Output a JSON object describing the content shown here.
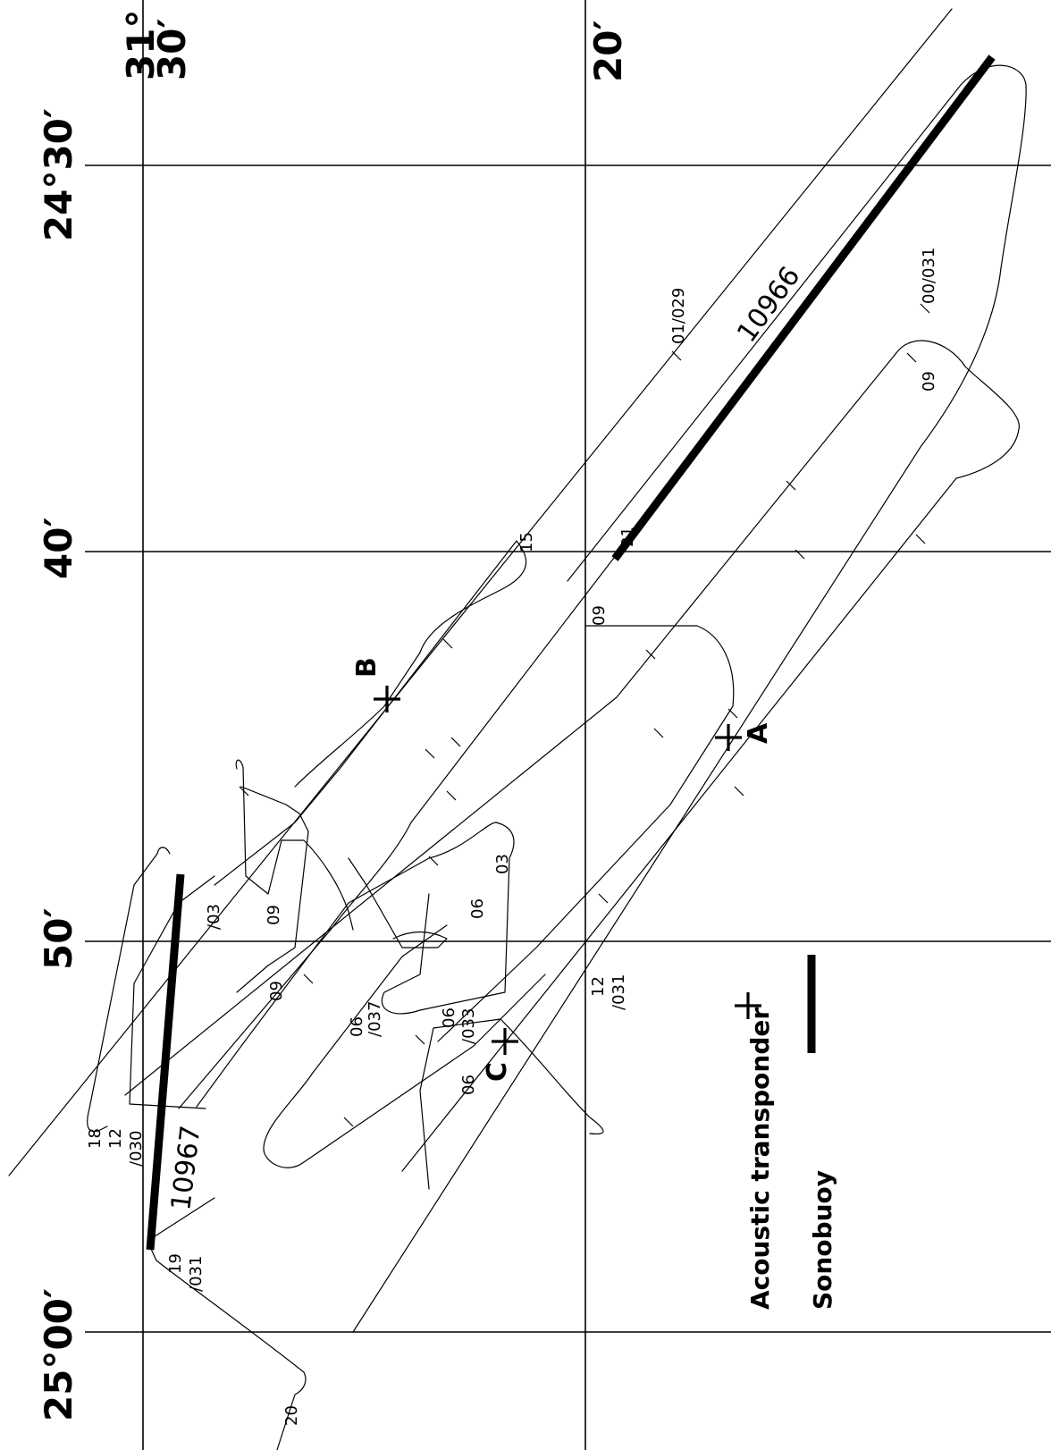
{
  "map": {
    "coordinate_labels": {
      "lon_31_30_deg": "31°",
      "lon_31_30_min": "30′",
      "lon_20": "20′",
      "lat_24_30": "24°30′",
      "lat_40": "40′",
      "lat_50": "50′",
      "lat_25_00": "25°00′"
    },
    "sonobuoy_lines": [
      {
        "id": "10966",
        "label": "10966"
      },
      {
        "id": "10967",
        "label": "10967"
      }
    ],
    "transponders": [
      {
        "id": "A",
        "label": "A"
      },
      {
        "id": "B",
        "label": "B"
      },
      {
        "id": "C",
        "label": "C"
      }
    ],
    "track_labels": [
      {
        "id": "t1",
        "text": "01/029"
      },
      {
        "id": "t2",
        "text": "00/031"
      },
      {
        "id": "t3",
        "text": "09"
      },
      {
        "id": "t4",
        "text": "15"
      },
      {
        "id": "t5",
        "text": "21"
      },
      {
        "id": "t6",
        "text": "09"
      },
      {
        "id": "t7",
        "text": "03"
      },
      {
        "id": "t8",
        "text": "06"
      },
      {
        "id": "t9",
        "text": "/03"
      },
      {
        "id": "t10",
        "text": "09"
      },
      {
        "id": "t11",
        "text": "09"
      },
      {
        "id": "t12",
        "text": "06"
      },
      {
        "id": "t13",
        "text": "/037"
      },
      {
        "id": "t14",
        "text": "06"
      },
      {
        "id": "t15",
        "text": "/033"
      },
      {
        "id": "t16",
        "text": "06"
      },
      {
        "id": "t17",
        "text": "12"
      },
      {
        "id": "t18",
        "text": "/031"
      },
      {
        "id": "t19",
        "text": "18"
      },
      {
        "id": "t20",
        "text": "12"
      },
      {
        "id": "t21",
        "text": "/030"
      },
      {
        "id": "t22",
        "text": "19"
      },
      {
        "id": "t23",
        "text": "/031"
      },
      {
        "id": "t24",
        "text": "20"
      }
    ],
    "legend": {
      "transponder_label": "Acoustic transponder",
      "sonobuoy_label": "Sonobuoy"
    }
  }
}
